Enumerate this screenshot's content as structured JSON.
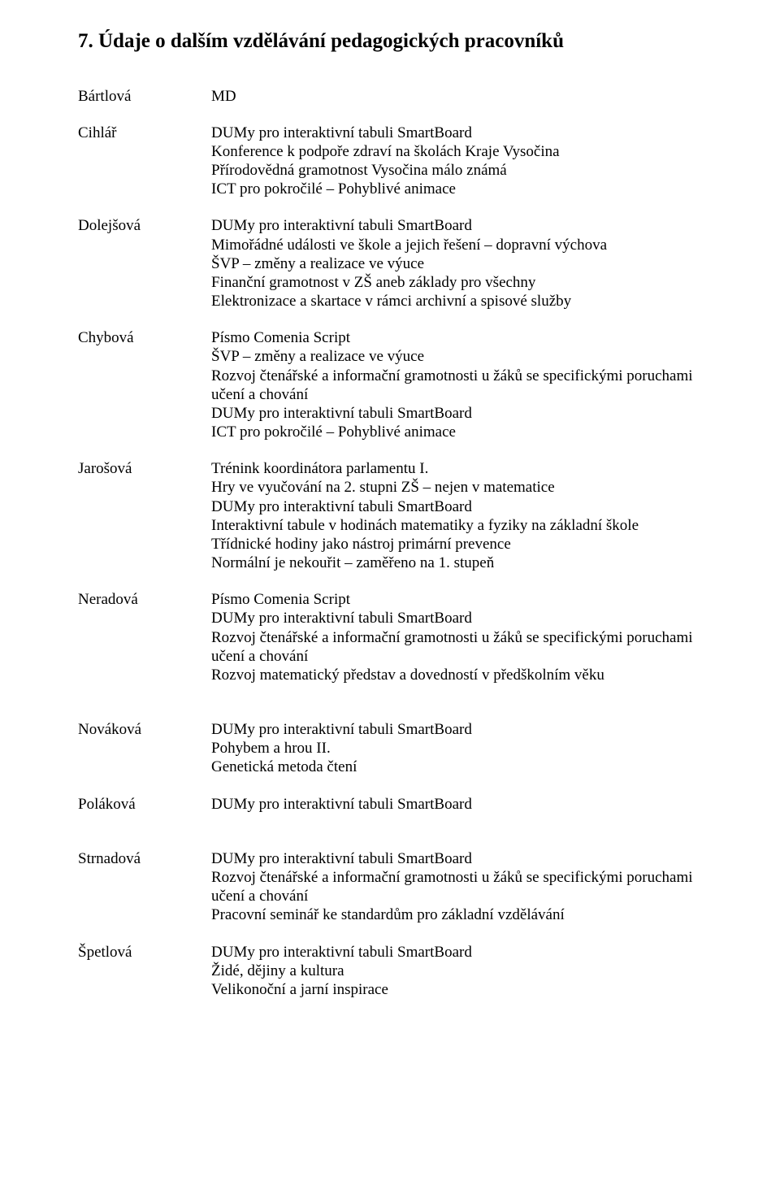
{
  "heading": "7. Údaje o dalším vzdělávání pedagogických pracovníků",
  "people": {
    "bartlova": {
      "name": "Bártlová",
      "lines": [
        "MD"
      ]
    },
    "cihlar": {
      "name": "Cihlář",
      "lines": [
        "DUMy pro interaktivní tabuli SmartBoard",
        "Konference k podpoře zdraví na školách Kraje Vysočina",
        "Přírodovědná gramotnost Vysočina málo známá",
        "ICT  pro pokročilé – Pohyblivé animace"
      ]
    },
    "dolejsova": {
      "name": "Dolejšová",
      "lines": [
        "DUMy pro interaktivní tabuli SmartBoard",
        "Mimořádné události ve škole a jejich řešení – dopravní výchova",
        "ŠVP – změny a realizace ve výuce",
        "Finanční gramotnost v ZŠ aneb základy pro všechny",
        "Elektronizace a skartace v rámci archivní a spisové služby"
      ]
    },
    "chybova": {
      "name": "Chybová",
      "lines": [
        "Písmo Comenia Script",
        "ŠVP – změny a realizace ve výuce",
        "Rozvoj čtenářské a informační gramotnosti u žáků se specifickými poruchami",
        "učení a chování",
        "DUMy pro interaktivní tabuli SmartBoard",
        "ICT  pro pokročilé – Pohyblivé animace"
      ]
    },
    "jarosova": {
      "name": "Jarošová",
      "lines": [
        "Trénink koordinátora parlamentu I.",
        "Hry ve vyučování na 2. stupni ZŠ – nejen v matematice",
        "DUMy pro interaktivní tabuli SmartBoard",
        "Interaktivní tabule v hodinách matematiky a fyziky na základní škole",
        "Třídnické hodiny jako nástroj primární prevence",
        "Normální je nekouřit – zaměřeno na 1. stupeň"
      ]
    },
    "neradova": {
      "name": "Neradová",
      "lines": [
        "Písmo Comenia Script",
        "DUMy pro interaktivní tabuli SmartBoard",
        "Rozvoj čtenářské a informační gramotnosti u žáků se specifickými poruchami",
        "učení a chování",
        "Rozvoj matematický představ a dovedností v předškolním věku"
      ]
    },
    "novakova": {
      "name": "Nováková",
      "lines": [
        "DUMy pro interaktivní tabuli SmartBoard",
        "Pohybem a hrou II.",
        "Genetická metoda čtení"
      ]
    },
    "polakova": {
      "name": "Poláková",
      "lines": [
        "DUMy pro interaktivní tabuli SmartBoard"
      ]
    },
    "strnadova": {
      "name": "Strnadová",
      "lines": [
        "DUMy pro interaktivní tabuli SmartBoard",
        "Rozvoj čtenářské a informační gramotnosti u žáků se specifickými poruchami",
        "učení a chování",
        "Pracovní seminář ke standardům pro základní vzdělávání"
      ]
    },
    "spetlova": {
      "name": "Špetlová",
      "lines": [
        "DUMy pro interaktivní tabuli SmartBoard",
        "Židé, dějiny a kultura",
        "Velikonoční a jarní inspirace"
      ]
    }
  }
}
